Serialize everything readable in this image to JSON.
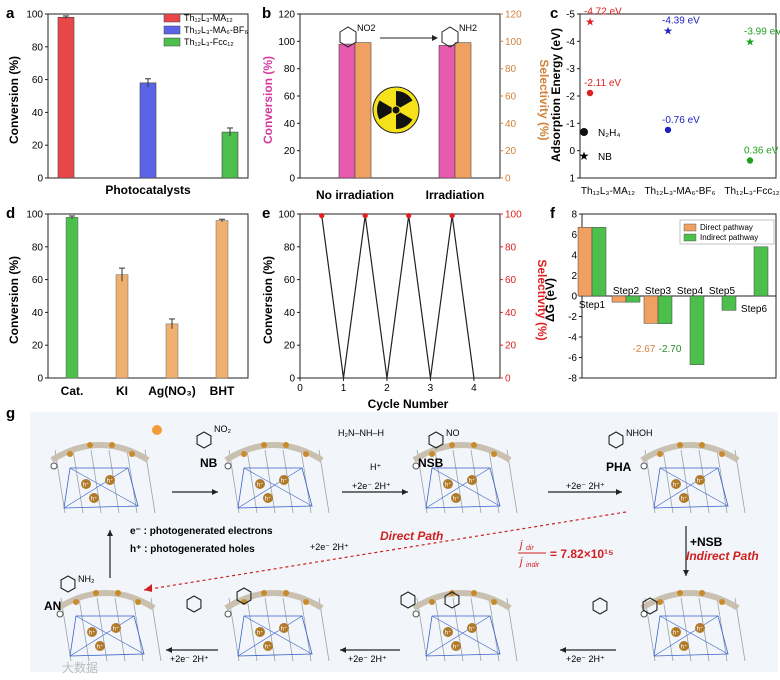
{
  "panels": {
    "a": {
      "letter": "a",
      "ylabel": "Conversion (%)",
      "xlabel": "Photocatalysts"
    },
    "b": {
      "letter": "b",
      "ylabel_left": "Conversion (%)",
      "ylabel_right": "Selectivity (%)"
    },
    "c": {
      "letter": "c",
      "ylabel": "Adsorption Energy (eV)"
    },
    "d": {
      "letter": "d",
      "ylabel": "Conversion (%)"
    },
    "e": {
      "letter": "e",
      "ylabel_left": "Conversion (%)",
      "ylabel_right": "Selectivity (%)",
      "xlabel": "Cycle Number"
    },
    "f": {
      "letter": "f",
      "ylabel": "ΔG (eV)"
    },
    "g": {
      "letter": "g"
    }
  },
  "chart_data": [
    {
      "panel": "a",
      "type": "bar",
      "categories": [
        "Th12L3-MA12",
        "Th12L3-MA6-BF6",
        "Th12L3-Fcc12"
      ],
      "legend": [
        "Th₁₂L₃-MA₁₂",
        "Th₁₂L₃-MA₆-BF₆",
        "Th₁₂L₃-Fcc₁₂"
      ],
      "values": [
        98,
        58,
        28
      ],
      "errors": [
        0.8,
        2.5,
        2.5
      ],
      "colors": [
        "#e8474a",
        "#5b63e6",
        "#4cbf4c"
      ],
      "ylim": [
        0,
        100
      ],
      "yticks": [
        0,
        20,
        40,
        60,
        80,
        100
      ]
    },
    {
      "panel": "b",
      "type": "bar",
      "categories": [
        "No irradiation",
        "Irradiation"
      ],
      "series": [
        {
          "name": "Conversion",
          "values": [
            98,
            97
          ],
          "color": "#e85ab0"
        },
        {
          "name": "Selectivity",
          "values": [
            99,
            99
          ],
          "color": "#f0a060"
        }
      ],
      "ylim": [
        0,
        120
      ],
      "yticks": [
        0,
        20,
        40,
        60,
        80,
        100,
        120
      ],
      "reactant": "NO2",
      "product": "NH2"
    },
    {
      "panel": "c",
      "type": "scatter",
      "categories": [
        "Th12L3-MA12",
        "Th12L3-MA6-BF6",
        "Th12L3-Fcc12"
      ],
      "cat_labels": [
        "Th₁₂L₃-MA₁₂",
        "Th₁₂L₃-MA₆-BF₆",
        "Th₁₂L₃-Fcc₁₂"
      ],
      "n2h4": [
        -2.11,
        -0.76,
        0.36
      ],
      "nb": [
        -4.72,
        -4.39,
        -3.99
      ],
      "n2h4_labels": [
        "-2.11 eV",
        "-0.76 eV",
        "0.36 eV"
      ],
      "nb_labels": [
        "-4.72 eV",
        "-4.39 eV",
        "-3.99 eV"
      ],
      "colors": [
        "#e02020",
        "#2020c0",
        "#20a020"
      ],
      "legend": [
        "N₂H₄",
        "NB"
      ],
      "ylim": [
        -5,
        1
      ],
      "yticks": [
        -5,
        -4,
        -3,
        -2,
        -1,
        0,
        1
      ]
    },
    {
      "panel": "d",
      "type": "bar",
      "categories": [
        "Cat.",
        "KI",
        "Ag(NO3)",
        "BHT"
      ],
      "cat_labels": [
        "Cat.",
        "KI",
        "Ag(NO₃)",
        "BHT"
      ],
      "values": [
        98,
        63,
        33,
        96
      ],
      "errors": [
        0.8,
        4,
        3,
        0.8
      ],
      "colors": [
        "#4cbf4c",
        "#f0b070",
        "#f0b070",
        "#f0b070"
      ],
      "ylim": [
        0,
        100
      ],
      "yticks": [
        0,
        20,
        40,
        60,
        80,
        100
      ]
    },
    {
      "panel": "e",
      "type": "line",
      "x": [
        0.5,
        1,
        1.5,
        2,
        2.5,
        3,
        3.5,
        4
      ],
      "conversion": [
        99,
        0,
        99,
        0,
        99,
        0,
        99,
        0
      ],
      "selectivity_x": [
        0.5,
        1.5,
        2.5,
        3.5
      ],
      "selectivity": [
        99,
        99,
        99,
        99
      ],
      "xlim": [
        0,
        4.6
      ],
      "xticks": [
        0,
        1,
        2,
        3,
        4
      ],
      "ylim": [
        0,
        100
      ],
      "yticks": [
        0,
        20,
        40,
        60,
        80,
        100
      ]
    },
    {
      "panel": "f",
      "type": "bar",
      "categories": [
        "Step1",
        "Step2",
        "Step3",
        "Step4",
        "Step5",
        "Step6"
      ],
      "series": [
        {
          "name": "Direct pathway",
          "values": [
            6.7,
            -0.6,
            -2.67,
            null,
            null,
            null
          ],
          "color": "#f0a060"
        },
        {
          "name": "Indirect pathway",
          "values": [
            6.7,
            -0.6,
            -2.7,
            -6.7,
            -1.4,
            4.8
          ],
          "color": "#4cbf4c"
        }
      ],
      "value_labels": [
        "-2.67",
        "-2.70"
      ],
      "ylim": [
        -8,
        8
      ],
      "yticks": [
        -8,
        -6,
        -4,
        -2,
        0,
        2,
        4,
        6,
        8
      ]
    }
  ],
  "scheme": {
    "labels": {
      "nb": "NB",
      "nsb": "NSB",
      "pha": "PHA",
      "an": "AN",
      "no": "NO",
      "nhoh": "NHOH",
      "no2": "NO₂",
      "nh2": "NH₂"
    },
    "electrons": "e⁻ : photogenerated electrons",
    "holes": "h⁺ : photogenerated holes",
    "direct": "Direct Path",
    "indirect": "Indirect Path",
    "ratio": "= 7.82×10¹⁵",
    "jdir": "j",
    "sub_dir": "dir",
    "sub_indir": "indir",
    "plus_nsb": "+NSB",
    "hplus": "H⁺",
    "step": "+2e⁻  2H⁺",
    "watermark": "大数据"
  }
}
